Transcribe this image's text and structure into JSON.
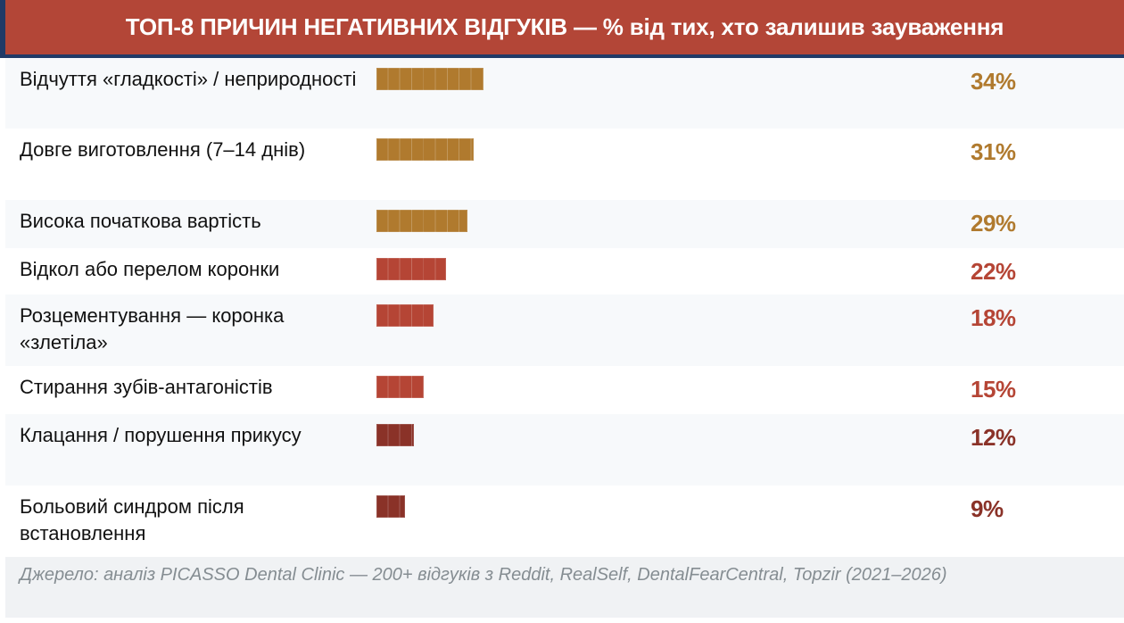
{
  "header": {
    "title": "ТОП-8 ПРИЧИН НЕГАТИВНИХ ВІДГУКІВ — % від тих, хто залишив зауваження"
  },
  "colors": {
    "header_bg": "#b34637",
    "header_border": "#213a66",
    "gold": "#b07a2e",
    "red": "#b54535",
    "dark_red": "#8a3228",
    "row_stripe": "#f7f9fb",
    "footer_bg": "#f0f2f4",
    "footer_text": "#858d92"
  },
  "rows": [
    {
      "label": "Відчуття «гладкості» / неприроδності",
      "value": 34,
      "display": "34%",
      "tier": "gold"
    },
    {
      "label": "Довге виготовлення (7–14 днів)",
      "value": 31,
      "display": "31%",
      "tier": "gold"
    },
    {
      "label": "Висока початкова вартість",
      "value": 29,
      "display": "29%",
      "tier": "gold"
    },
    {
      "label": "Відкол або перелом коронки",
      "value": 22,
      "display": "22%",
      "tier": "red"
    },
    {
      "label": "Розцементування — коронка «злетіла»",
      "value": 18,
      "display": "18%",
      "tier": "red"
    },
    {
      "label": "Стирання зубів-антагоністів",
      "value": 15,
      "display": "15%",
      "tier": "red"
    },
    {
      "label": "Клацання / порушення прикусу",
      "value": 12,
      "display": "12%",
      "tier": "dark_red"
    },
    {
      "label": "Больовий синдром після встановлення",
      "value": 9,
      "display": "9%",
      "tier": "dark_red"
    }
  ],
  "footer": {
    "source": "Джерело: аналіз PICASSO Dental Clinic — 200+ відгуків з Reddit, RealSelf, DentalFearCentral, Topzir (2021–2026)"
  },
  "chart_data": {
    "type": "bar",
    "orientation": "horizontal",
    "title": "ТОП-8 ПРИЧИН НЕГАТИВНИХ ВІДГУКІВ — % від тих, хто залишив зауваження",
    "categories": [
      "Відчуття «гладкості» / неприродності",
      "Довге виготовлення (7–14 днів)",
      "Висока початкова вартість",
      "Відкол або перелом коронки",
      "Розцементування — коронка «злетіла»",
      "Стирання зубів-антагоністів",
      "Клацання / порушення прикусу",
      "Больовий синдром після встановлення"
    ],
    "values": [
      34,
      31,
      29,
      22,
      18,
      15,
      12,
      9
    ],
    "unit": "%",
    "xlabel": "",
    "ylabel": "",
    "grid": false,
    "legend": null,
    "annotation": "Джерело: аналіз PICASSO Dental Clinic — 200+ відгуків з Reddit, RealSelf, DentalFearCentral, Topzir (2021–2026)"
  }
}
